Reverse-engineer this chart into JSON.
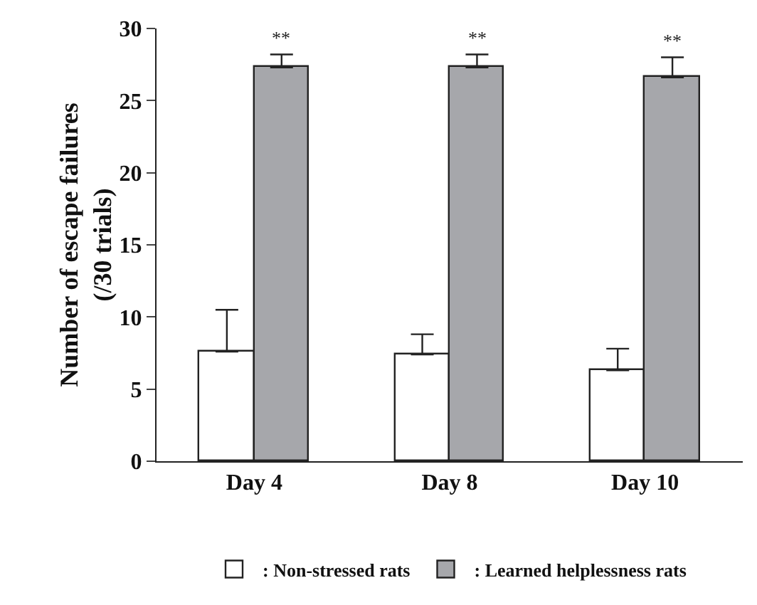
{
  "chart_data": {
    "type": "bar",
    "ylabel": "Number of escape failures\n(/30 trials)",
    "categories": [
      "Day 4",
      "Day 8",
      "Day 10"
    ],
    "series": [
      {
        "name": ": Non-stressed rats",
        "color": "#ffffff",
        "values": [
          7.6,
          7.4,
          6.3
        ],
        "errors": [
          [
            7.6,
            10.5
          ],
          [
            7.4,
            8.8
          ],
          [
            6.3,
            7.8
          ]
        ]
      },
      {
        "name": ": Learned helplessness rats",
        "color": "#a6a7ab",
        "values": [
          27.3,
          27.3,
          26.6
        ],
        "errors": [
          [
            27.3,
            28.2
          ],
          [
            27.3,
            28.2
          ],
          [
            26.6,
            28.0
          ]
        ]
      }
    ],
    "annotations": [
      "**",
      "**",
      "**"
    ],
    "ylim": [
      0,
      30
    ],
    "yticks": [
      0,
      5,
      10,
      15,
      20,
      25,
      30
    ],
    "grid": false,
    "legend": "bottom"
  }
}
